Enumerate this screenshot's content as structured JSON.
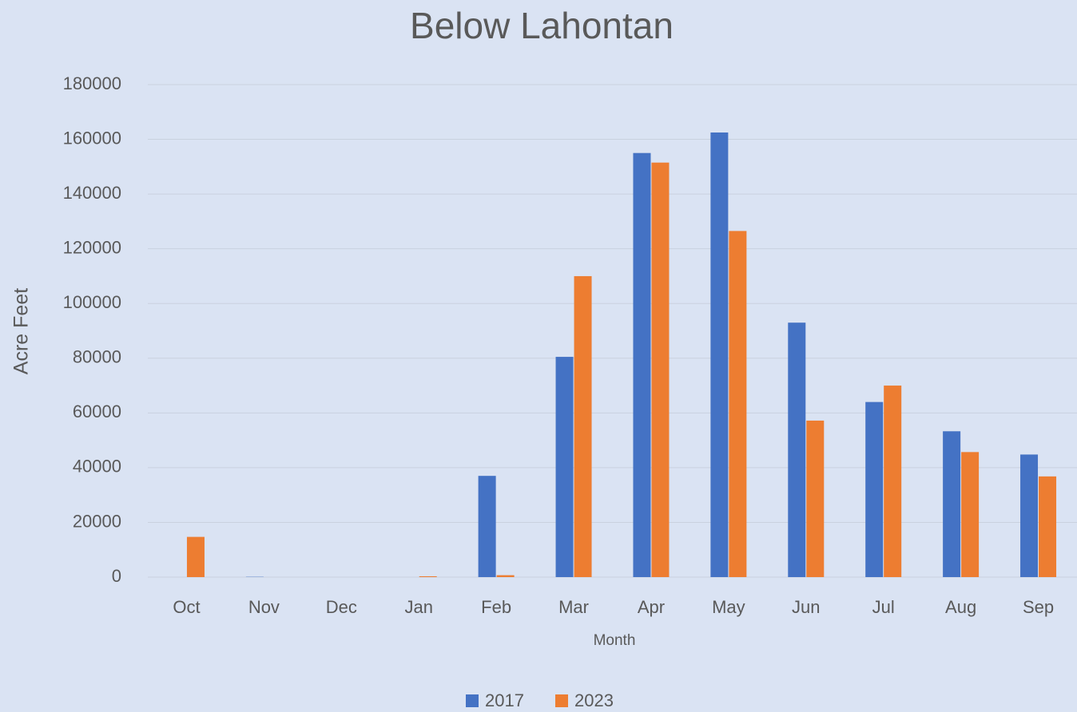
{
  "chart_data": {
    "type": "bar",
    "title": "Below Lahontan",
    "x_label": "Month",
    "y_label": "Acre Feet",
    "categories": [
      "Oct",
      "Nov",
      "Dec",
      "Jan",
      "Feb",
      "Mar",
      "Apr",
      "May",
      "Jun",
      "Jul",
      "Aug",
      "Sep"
    ],
    "series": [
      {
        "name": "2017",
        "color": "#4472c4",
        "values": [
          0,
          100,
          0,
          0,
          37000,
          80500,
          155000,
          162500,
          93000,
          64000,
          53300,
          44800
        ]
      },
      {
        "name": "2023",
        "color": "#ed7d31",
        "values": [
          14700,
          0,
          0,
          300,
          700,
          110000,
          151500,
          126500,
          57200,
          70000,
          45700,
          36800
        ]
      }
    ],
    "ylim": [
      0,
      180000
    ],
    "yticks": [
      0,
      20000,
      40000,
      60000,
      80000,
      100000,
      120000,
      140000,
      160000,
      180000
    ],
    "grid": true,
    "legend": "bottom"
  }
}
